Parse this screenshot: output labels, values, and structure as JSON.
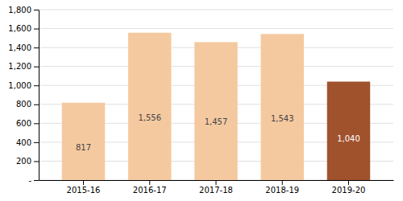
{
  "chart_data": {
    "type": "bar",
    "categories": [
      "2015-16",
      "2016-17",
      "2017-18",
      "2018-19",
      "2019-20"
    ],
    "values": [
      817,
      1556,
      1457,
      1543,
      1040
    ],
    "value_labels": [
      "817",
      "1,556",
      "1,457",
      "1,543",
      "1,040"
    ],
    "data_labels": true,
    "colors": [
      "#f5c9a0",
      "#f5c9a0",
      "#f5c9a0",
      "#f5c9a0",
      "#a0522d"
    ],
    "ylim": [
      0,
      1800
    ],
    "yticks": [
      {
        "value": 0,
        "label": "-"
      },
      200,
      400,
      600,
      800,
      {
        "value": 1000,
        "label": "1,000"
      },
      {
        "value": 1200,
        "label": "1,200"
      },
      {
        "value": 1400,
        "label": "1,400"
      },
      {
        "value": 1600,
        "label": "1,600"
      },
      {
        "value": 1800,
        "label": "1,800"
      }
    ],
    "grid": true
  }
}
